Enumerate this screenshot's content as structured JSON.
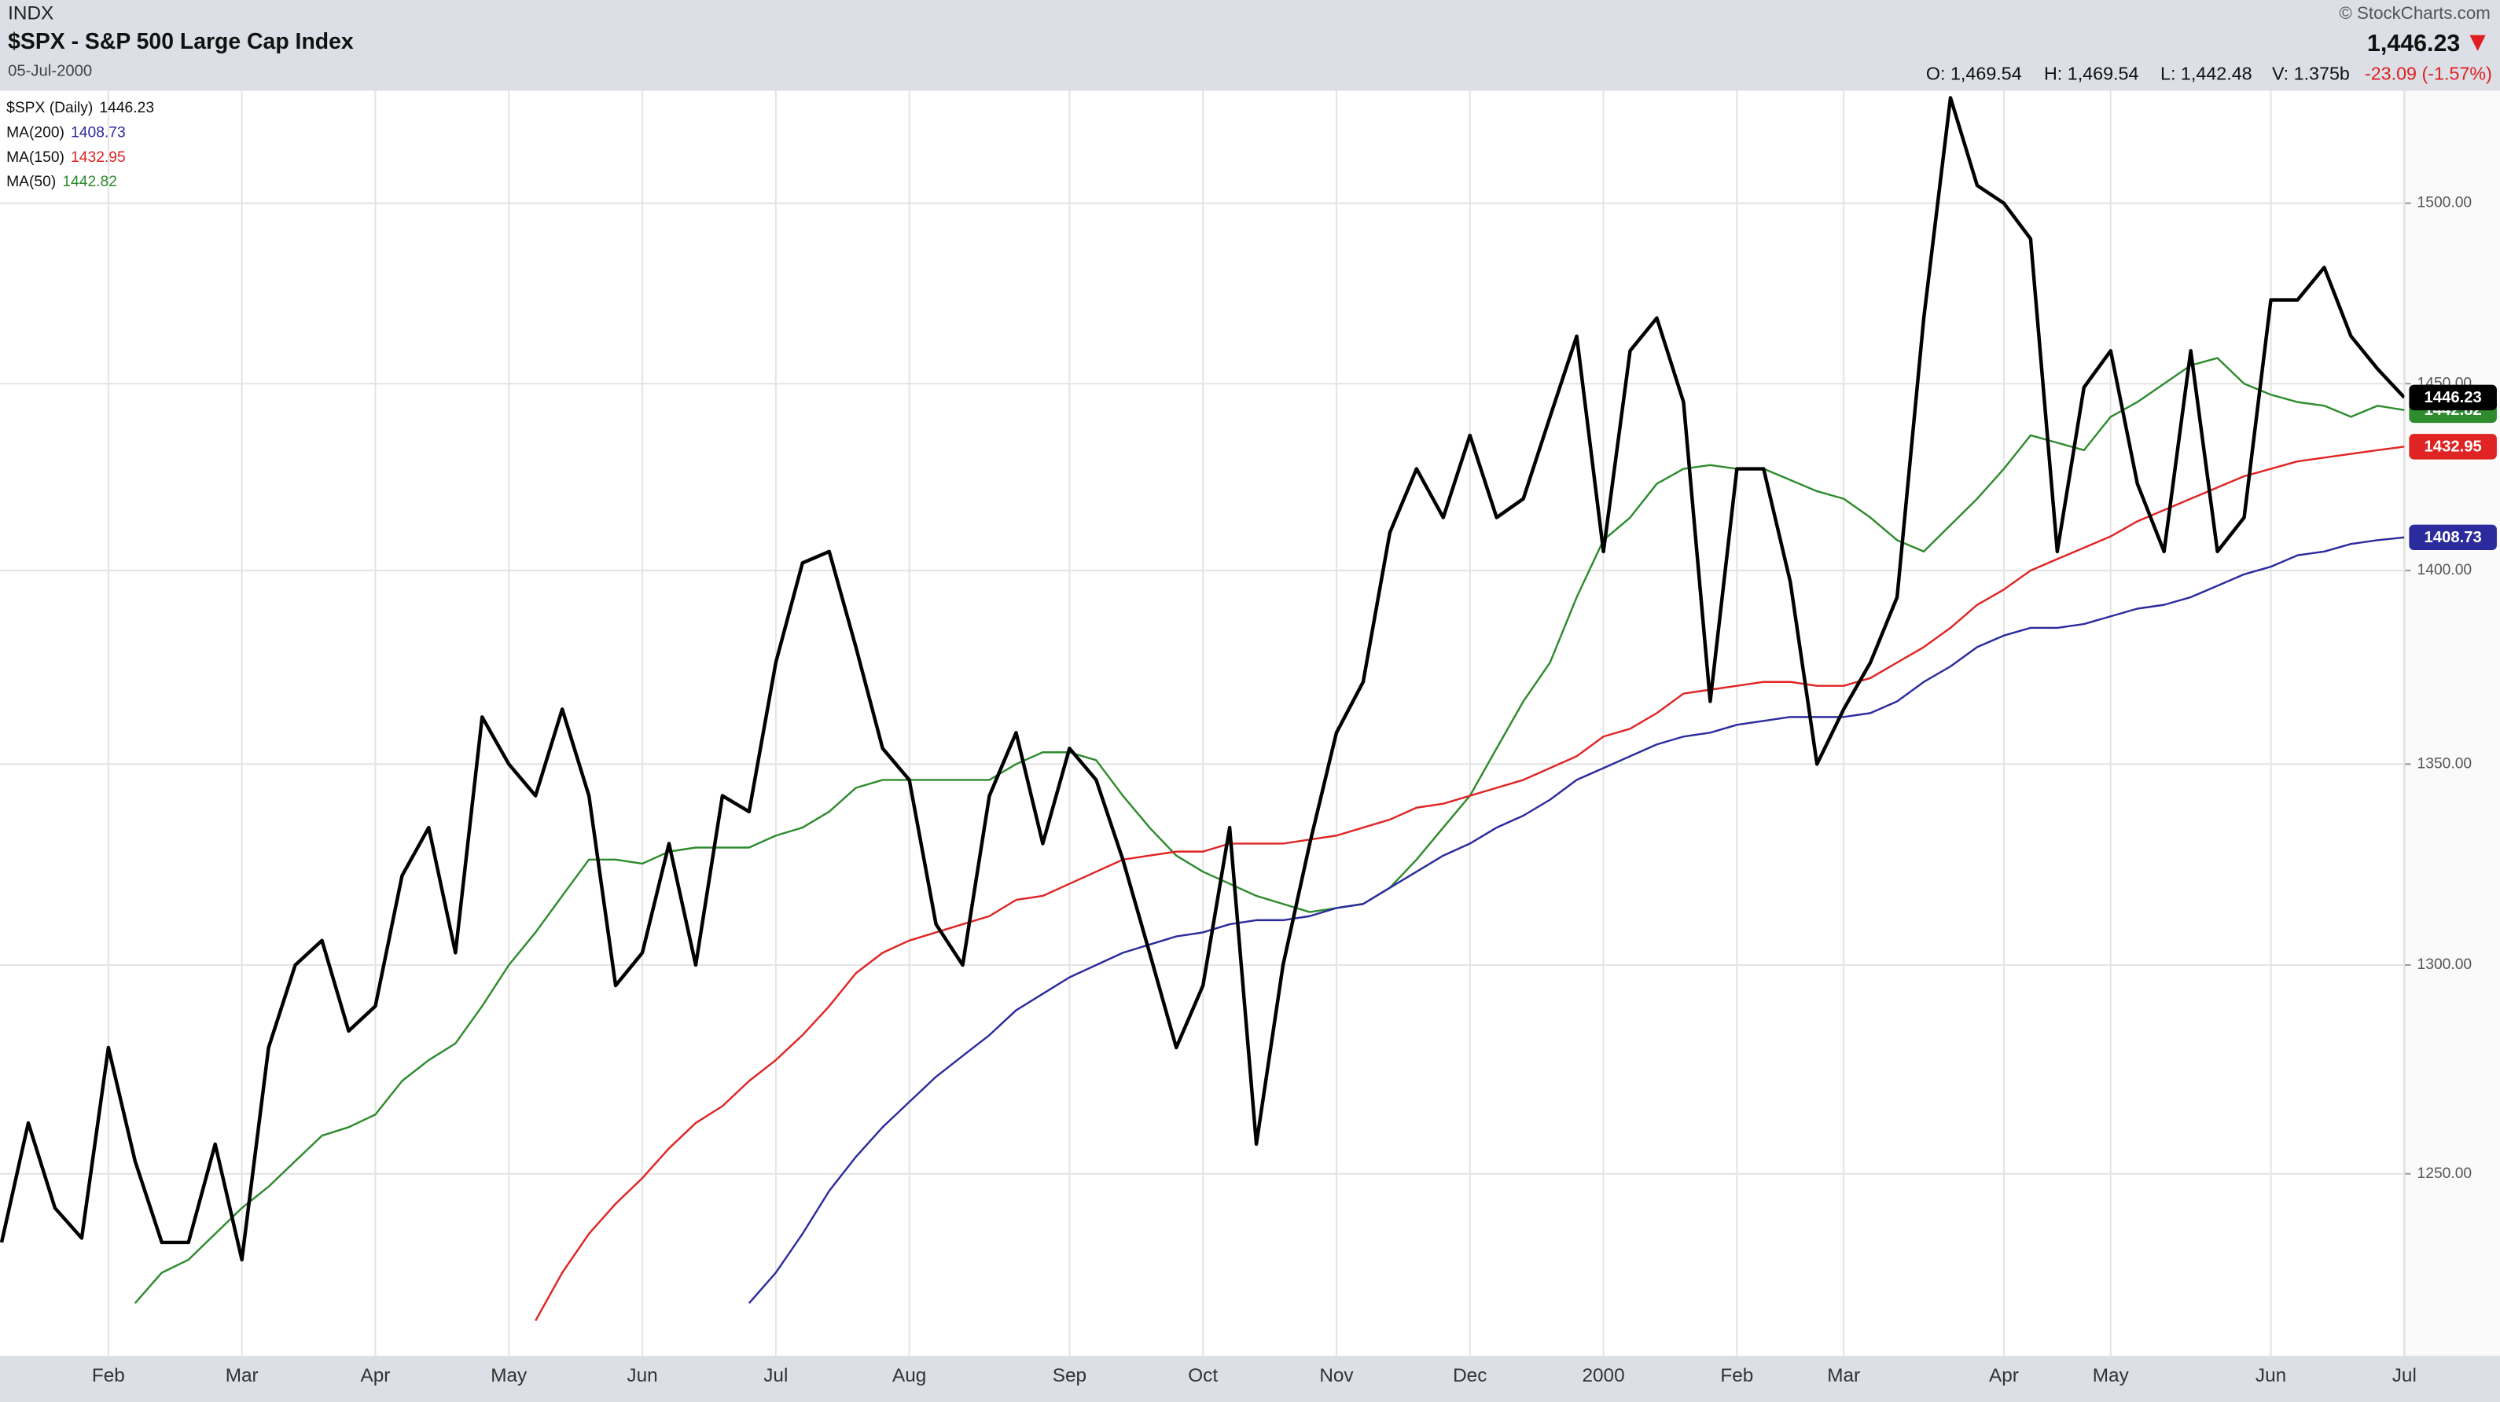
{
  "chart_data": {
    "type": "line",
    "exchange": "INDX",
    "title": "$SPX - S&P 500 Large Cap Index",
    "date": "05-Jul-2000",
    "copyright": "© StockCharts.com",
    "last_price": "1,446.23",
    "ohlcv": [
      "O: 1,469.54",
      "H: 1,469.54",
      "L: 1,442.48",
      "V: 1.375b"
    ],
    "change": "-23.09 (-1.57%)",
    "log_scale": true,
    "grid": true,
    "ylim": [
      1208,
      1532
    ],
    "yticks": [
      {
        "value": 1250,
        "label": "1250.00"
      },
      {
        "value": 1300,
        "label": "1300.00"
      },
      {
        "value": 1350,
        "label": "1350.00"
      },
      {
        "value": 1400,
        "label": "1400.00"
      },
      {
        "value": 1450,
        "label": "1450.00"
      },
      {
        "value": 1500,
        "label": "1500.00"
      }
    ],
    "categories": [
      null,
      null,
      null,
      null,
      "Feb",
      null,
      null,
      null,
      null,
      "Mar",
      null,
      null,
      null,
      null,
      "Apr",
      null,
      null,
      null,
      null,
      "May",
      null,
      null,
      null,
      null,
      "Jun",
      null,
      null,
      null,
      null,
      "Jul",
      null,
      null,
      null,
      null,
      "Aug",
      null,
      null,
      null,
      null,
      null,
      "Sep",
      null,
      null,
      null,
      null,
      "Oct",
      null,
      null,
      null,
      null,
      "Nov",
      null,
      null,
      null,
      null,
      "Dec",
      null,
      null,
      null,
      null,
      "2000",
      null,
      null,
      null,
      null,
      "Feb",
      null,
      null,
      null,
      "Mar",
      null,
      null,
      null,
      null,
      null,
      "Apr",
      null,
      null,
      null,
      "May",
      null,
      null,
      null,
      null,
      null,
      "Jun",
      null,
      null,
      null,
      null,
      "Jul"
    ],
    "series": [
      {
        "name": "$SPX (Daily)",
        "color": "#000000",
        "values": [
          1234,
          1262,
          1242,
          1235,
          1280,
          1253,
          1234,
          1234,
          1257,
          1230,
          1280,
          1300,
          1306,
          1284,
          1290,
          1322,
          1334,
          1303,
          1362,
          1350,
          1342,
          1364,
          1342,
          1295,
          1303,
          1330,
          1300,
          1342,
          1338,
          1376,
          1402,
          1405,
          1380,
          1354,
          1346,
          1310,
          1300,
          1342,
          1358,
          1330,
          1354,
          1346,
          1326,
          1303,
          1280,
          1295,
          1334,
          1257,
          1300,
          1330,
          1358,
          1371,
          1410,
          1427,
          1414,
          1436,
          1414,
          1419,
          1441,
          1463,
          1405,
          1459,
          1468,
          1445,
          1366,
          1427,
          1427,
          1397,
          1350,
          1364,
          1376,
          1393,
          1468,
          1530,
          1505,
          1500,
          1490,
          1405,
          1449,
          1459,
          1423,
          1405,
          1459,
          1405,
          1414,
          1473,
          1473,
          1482,
          1463,
          1454,
          1446.23
        ]
      },
      {
        "name": "MA(200)",
        "color": "#2b2b9e",
        "values": [
          null,
          null,
          null,
          null,
          null,
          null,
          null,
          null,
          null,
          null,
          null,
          null,
          null,
          null,
          null,
          null,
          null,
          null,
          null,
          null,
          null,
          null,
          null,
          null,
          null,
          null,
          null,
          null,
          1220,
          1227,
          1236,
          1246,
          1254,
          1261,
          1267,
          1273,
          1278,
          1283,
          1289,
          1293,
          1297,
          1300,
          1303,
          1305,
          1307,
          1308,
          1310,
          1311,
          1311,
          1312,
          1314,
          1315,
          1319,
          1323,
          1327,
          1330,
          1334,
          1337,
          1341,
          1346,
          1349,
          1352,
          1355,
          1357,
          1358,
          1360,
          1361,
          1362,
          1362,
          1362,
          1363,
          1366,
          1371,
          1375,
          1380,
          1383,
          1385,
          1385,
          1386,
          1388,
          1390,
          1391,
          1393,
          1396,
          1399,
          1401,
          1404,
          1405,
          1407,
          1408,
          1408.73
        ]
      },
      {
        "name": "MA(150)",
        "color": "#e02424",
        "values": [
          null,
          null,
          null,
          null,
          null,
          null,
          null,
          null,
          null,
          null,
          null,
          null,
          null,
          null,
          null,
          null,
          null,
          null,
          null,
          null,
          1216,
          1227,
          1236,
          1243,
          1249,
          1256,
          1262,
          1266,
          1272,
          1277,
          1283,
          1290,
          1298,
          1303,
          1306,
          1308,
          1310,
          1312,
          1316,
          1317,
          1320,
          1323,
          1326,
          1327,
          1328,
          1328,
          1330,
          1330,
          1330,
          1331,
          1332,
          1334,
          1336,
          1339,
          1340,
          1342,
          1344,
          1346,
          1349,
          1352,
          1357,
          1359,
          1363,
          1368,
          1369,
          1370,
          1371,
          1371,
          1370,
          1370,
          1372,
          1376,
          1380,
          1385,
          1391,
          1395,
          1400,
          1403,
          1406,
          1409,
          1413,
          1416,
          1419,
          1422,
          1425,
          1427,
          1429,
          1430,
          1431,
          1432,
          1432.95
        ]
      },
      {
        "name": "MA(50)",
        "color": "#2e8b2e",
        "values": [
          null,
          null,
          null,
          null,
          null,
          1220,
          1227,
          1230,
          1236,
          1242,
          1247,
          1253,
          1259,
          1261,
          1264,
          1272,
          1277,
          1281,
          1290,
          1300,
          1308,
          1317,
          1326,
          1326,
          1325,
          1328,
          1329,
          1329,
          1329,
          1332,
          1334,
          1338,
          1344,
          1346,
          1346,
          1346,
          1346,
          1346,
          1350,
          1353,
          1353,
          1351,
          1342,
          1334,
          1327,
          1323,
          1320,
          1317,
          1315,
          1313,
          1314,
          1315,
          1319,
          1326,
          1334,
          1342,
          1354,
          1366,
          1376,
          1393,
          1408,
          1414,
          1423,
          1427,
          1428,
          1427,
          1427,
          1424,
          1421,
          1419,
          1414,
          1408,
          1405,
          1412,
          1419,
          1427,
          1436,
          1434,
          1432,
          1441,
          1445,
          1450,
          1455,
          1457,
          1450,
          1447,
          1445,
          1444,
          1441,
          1444,
          1442.82
        ]
      }
    ]
  }
}
